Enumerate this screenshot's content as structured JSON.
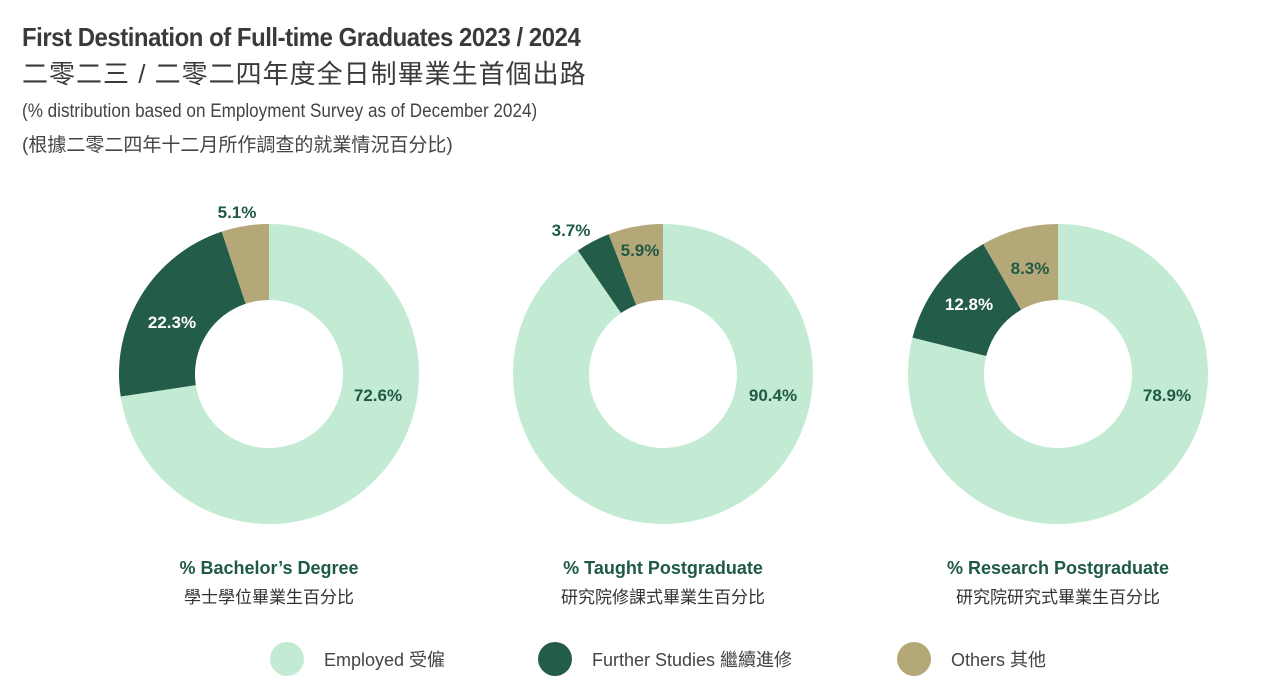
{
  "header": {
    "title": "First Destination of Full-time Graduates 2023 / 2024",
    "title_zh": "二零二三 / 二零二四年度全日制畢業生首個出路",
    "subtitle": "(% distribution based on Employment Survey as of December 2024)",
    "subtitle_zh": "(根據二零二四年十二月所作調查的就業情況百分比)"
  },
  "colors": {
    "employed": "#c3ebd3",
    "further": "#235c48",
    "others": "#b5a878",
    "label": "#1f5a45"
  },
  "chart_data": [
    {
      "type": "pie",
      "donut": true,
      "title": "% Bachelor’s Degree",
      "title_zh": "學士學位畢業生百分比",
      "categories": [
        "Employed",
        "Further Studies",
        "Others"
      ],
      "values": [
        72.6,
        22.3,
        5.1
      ],
      "labels": [
        "72.6%",
        "22.3%",
        "5.1%"
      ]
    },
    {
      "type": "pie",
      "donut": true,
      "title": "% Taught Postgraduate",
      "title_zh": "研究院修課式畢業生百分比",
      "categories": [
        "Employed",
        "Further Studies",
        "Others"
      ],
      "values": [
        90.4,
        3.7,
        5.9
      ],
      "labels": [
        "90.4%",
        "3.7%",
        "5.9%"
      ]
    },
    {
      "type": "pie",
      "donut": true,
      "title": "% Research Postgraduate",
      "title_zh": "研究院研究式畢業生百分比",
      "categories": [
        "Employed",
        "Further Studies",
        "Others"
      ],
      "values": [
        78.9,
        12.8,
        8.3
      ],
      "labels": [
        "78.9%",
        "12.8%",
        "8.3%"
      ]
    }
  ],
  "legend": [
    {
      "key": "employed",
      "label": "Employed 受僱"
    },
    {
      "key": "further",
      "label": "Further Studies 繼續進修"
    },
    {
      "key": "others",
      "label": "Others 其他"
    }
  ]
}
